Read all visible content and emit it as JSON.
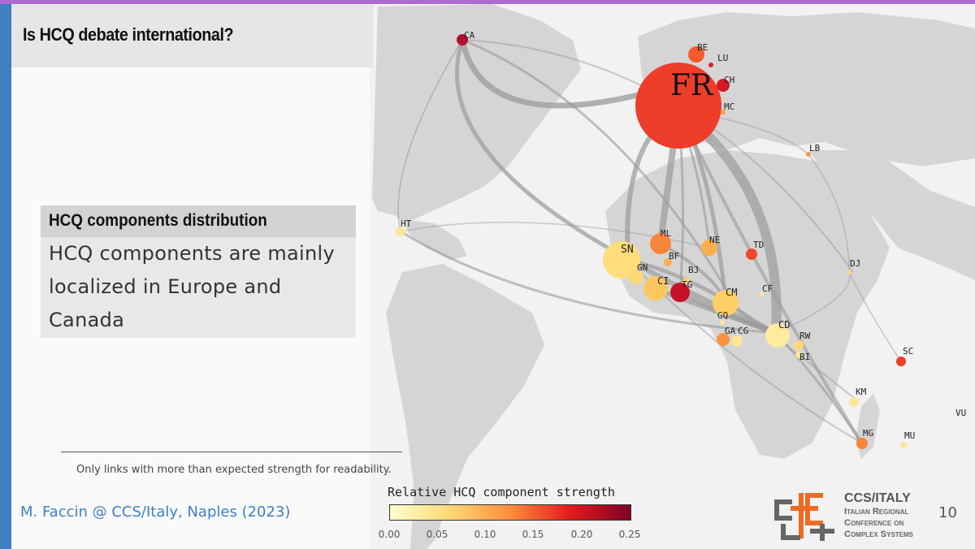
{
  "slide": {
    "title": "Is HCQ debate international?",
    "page_number": "10",
    "footer": "M. Faccin @ CCS/Italy, Naples (2023)"
  },
  "box": {
    "heading": "HCQ components distribution",
    "lines": [
      "HCQ components are mainly",
      "localized in Europe and",
      "Canada"
    ]
  },
  "note": "Only links with more than expected strength for readability.",
  "colorbar": {
    "title": "Relative HCQ component strength",
    "ticks": [
      "0.00",
      "0.05",
      "0.10",
      "0.15",
      "0.20",
      "0.25"
    ],
    "colors": [
      "#ffffcc",
      "#fed976",
      "#fd8d3c",
      "#e31a1c",
      "#800026"
    ]
  },
  "logo": {
    "title": "CCS/ITALY",
    "lines": [
      "Italian Regional",
      "Conference on",
      "Complex Systems"
    ]
  },
  "map": {
    "nodes": [
      {
        "code": "FR",
        "strength": 0.19
      },
      {
        "code": "CA",
        "strength": 0.25
      },
      {
        "code": "BE",
        "strength": 0.15
      },
      {
        "code": "LU",
        "strength": 0.22
      },
      {
        "code": "CH",
        "strength": 0.23
      },
      {
        "code": "MC",
        "strength": 0.08
      },
      {
        "code": "LB",
        "strength": 0.08
      },
      {
        "code": "HT",
        "strength": 0.03
      },
      {
        "code": "SN",
        "strength": 0.04
      },
      {
        "code": "ML",
        "strength": 0.13
      },
      {
        "code": "NE",
        "strength": 0.1
      },
      {
        "code": "TD",
        "strength": 0.17
      },
      {
        "code": "BF",
        "strength": 0.1
      },
      {
        "code": "BJ",
        "strength": 0.06
      },
      {
        "code": "GN",
        "strength": 0.05
      },
      {
        "code": "CI",
        "strength": 0.07
      },
      {
        "code": "TG",
        "strength": 0.24
      },
      {
        "code": "CM",
        "strength": 0.06
      },
      {
        "code": "CF",
        "strength": 0.05
      },
      {
        "code": "GQ",
        "strength": 0.04
      },
      {
        "code": "GA",
        "strength": 0.12
      },
      {
        "code": "CG",
        "strength": 0.05
      },
      {
        "code": "CD",
        "strength": 0.03
      },
      {
        "code": "RW",
        "strength": 0.07
      },
      {
        "code": "BI",
        "strength": 0.05
      },
      {
        "code": "DJ",
        "strength": 0.08
      },
      {
        "code": "SC",
        "strength": 0.19
      },
      {
        "code": "KM",
        "strength": 0.06
      },
      {
        "code": "MG",
        "strength": 0.13
      },
      {
        "code": "MU",
        "strength": 0.05
      },
      {
        "code": "VU",
        "strength": 0.0
      }
    ]
  }
}
